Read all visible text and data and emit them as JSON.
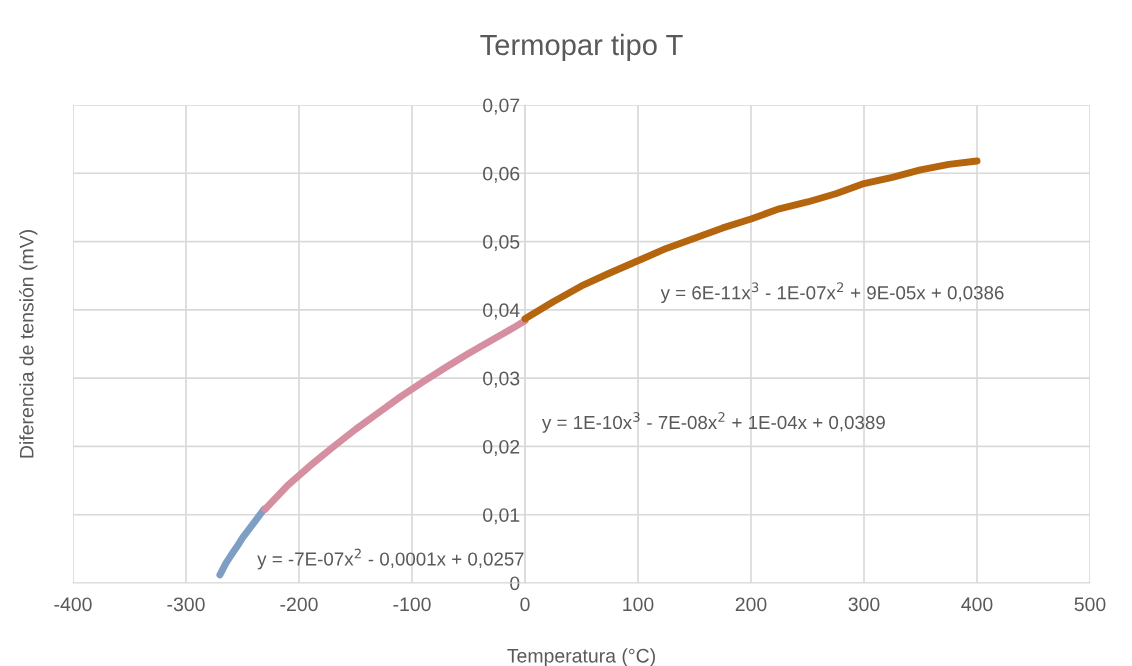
{
  "chart_data": {
    "type": "line",
    "title": "Termopar tipo T",
    "xlabel": "Temperatura (°C)",
    "ylabel": "Diferencia de tensión (mV)",
    "series": [
      {
        "color": "#7f9ec4",
        "x": [
          -270,
          -265,
          -260,
          -255,
          -250,
          -245,
          -240,
          -235,
          -231
        ],
        "values": [
          0.0012,
          0.0028,
          0.0041,
          0.0053,
          0.0066,
          0.0077,
          0.0088,
          0.0099,
          0.0108
        ]
      },
      {
        "color": "#d58fa1",
        "x": [
          -230,
          -210,
          -190,
          -170,
          -150,
          -130,
          -110,
          -90,
          -70,
          -50,
          -30,
          -10,
          0
        ],
        "values": [
          0.0108,
          0.0143,
          0.0172,
          0.0199,
          0.0225,
          0.0249,
          0.0273,
          0.0295,
          0.0316,
          0.0336,
          0.0355,
          0.0374,
          0.0384
        ]
      },
      {
        "color": "#b5650e",
        "x": [
          0,
          25,
          50,
          75,
          100,
          125,
          150,
          175,
          200,
          225,
          250,
          275,
          300,
          325,
          350,
          375,
          400
        ],
        "values": [
          0.0387,
          0.0412,
          0.0435,
          0.0454,
          0.0472,
          0.049,
          0.0505,
          0.052,
          0.0533,
          0.0548,
          0.0558,
          0.057,
          0.0585,
          0.0594,
          0.0605,
          0.0613,
          0.0618
        ]
      }
    ],
    "xlim": [
      -400,
      500
    ],
    "xticks": [
      -400,
      -300,
      -200,
      -100,
      0,
      100,
      200,
      300,
      400,
      500
    ],
    "ylim": [
      0,
      0.07
    ],
    "yticks": [
      0,
      {
        "value": 0.01,
        "label": "0,01"
      },
      {
        "value": 0.02,
        "label": "0,02"
      },
      {
        "value": 0.03,
        "label": "0,03"
      },
      {
        "value": 0.04,
        "label": "0,04"
      },
      {
        "value": 0.05,
        "label": "0,05"
      },
      {
        "value": 0.06,
        "label": "0,06"
      },
      {
        "value": 0.07,
        "label": "0,07"
      }
    ],
    "grid": true,
    "marker": "none",
    "line_style": "solid",
    "annotations": [
      "y = -7E-07x$^{2}$ - 0,0001x + 0,0257",
      "y = 1E-10x$^{3}$ - 7E-08x$^{2}$ + 1E-04x + 0,0389",
      "y = 6E-11x$^{3}$ - 1E-07x$^{2}$ + 9E-05x + 0,0386"
    ]
  }
}
